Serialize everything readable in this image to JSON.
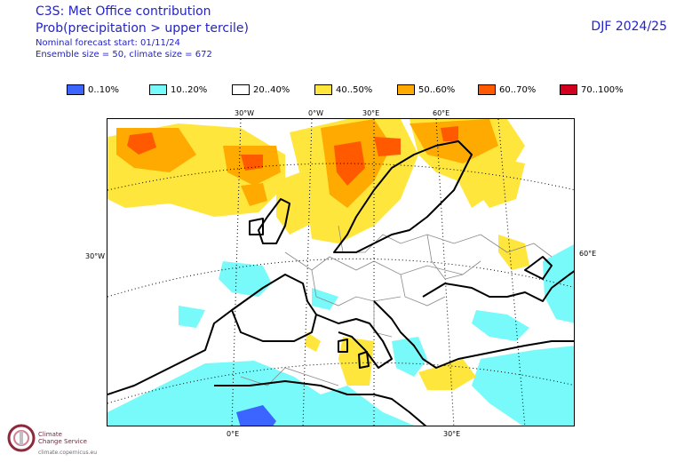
{
  "header": {
    "title": "C3S: Met Office contribution",
    "subtitle": "Prob(precipitation > upper tercile)",
    "forecast_start": "Nominal forecast start: 01/11/24",
    "ensemble": "Ensemble size = 50, climate size = 672",
    "season": "DJF 2024/25"
  },
  "legend": [
    {
      "label": "0..10%",
      "color": "#3c64ff"
    },
    {
      "label": "10..20%",
      "color": "#78fafa"
    },
    {
      "label": "20..40%",
      "color": "#ffffff"
    },
    {
      "label": "40..50%",
      "color": "#ffe63c"
    },
    {
      "label": "50..60%",
      "color": "#ffaa00"
    },
    {
      "label": "60..70%",
      "color": "#ff5a00"
    },
    {
      "label": "70..100%",
      "color": "#d2001e"
    }
  ],
  "axis_labels": {
    "top": [
      "30°W",
      "0°W",
      "30°E",
      "60°E"
    ],
    "bottom": [
      "0°E",
      "30°E"
    ],
    "left": "30°W",
    "right": "60°E"
  },
  "logo": {
    "name_line1": "Climate",
    "name_line2": "Change Service",
    "url": "climate.copernicus.eu"
  }
}
